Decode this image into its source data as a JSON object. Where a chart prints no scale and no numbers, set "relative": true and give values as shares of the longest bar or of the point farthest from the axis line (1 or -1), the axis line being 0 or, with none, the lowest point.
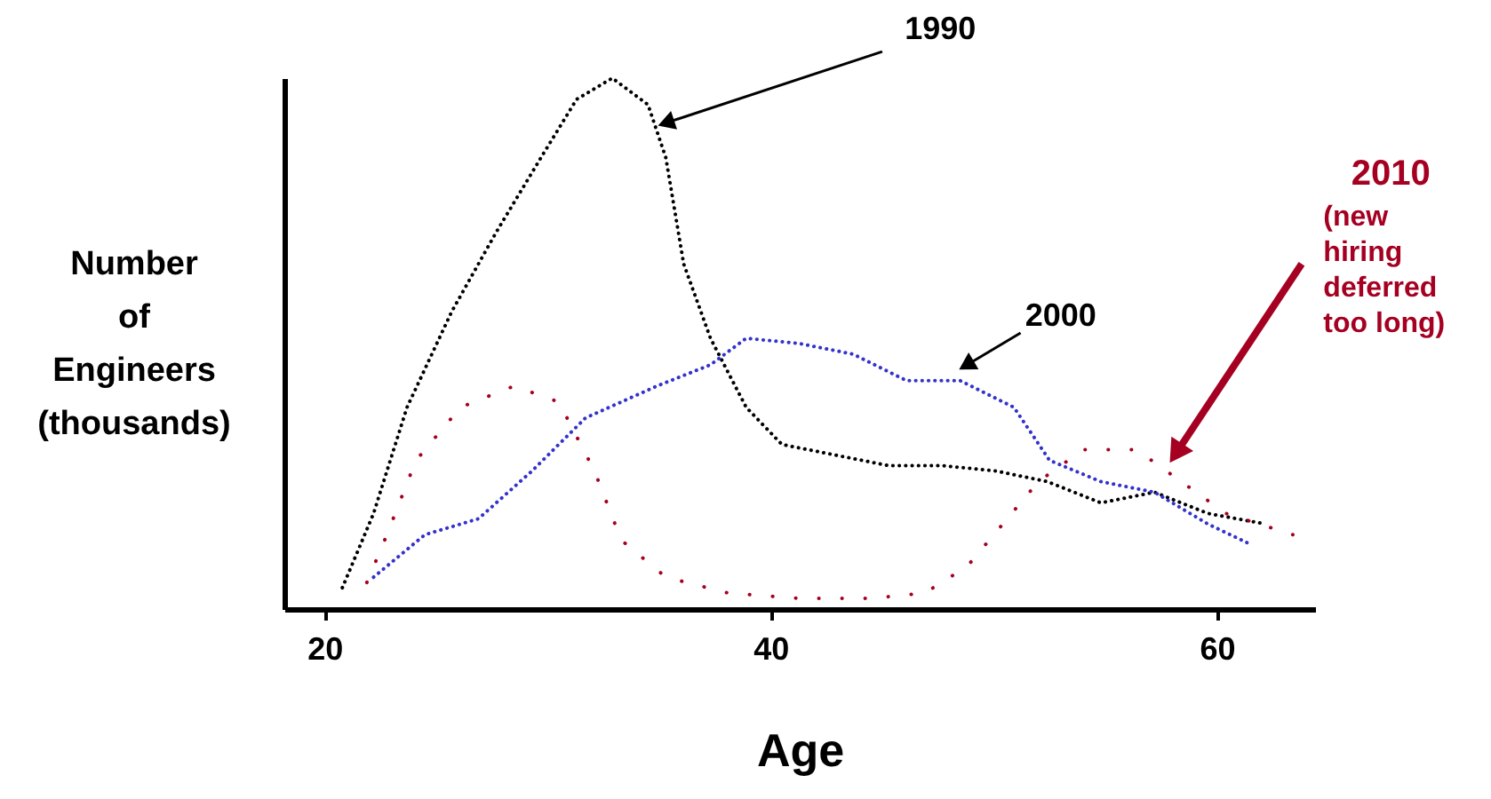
{
  "chart_data": {
    "type": "line",
    "relative": true,
    "xlabel": "Age",
    "ylabel": "Number\nof\nEngineers\n(thousands)",
    "xlim": [
      18.2,
      64.4
    ],
    "xticks": [
      20,
      40,
      60
    ],
    "tick_labels": "x",
    "grid": false,
    "legend": false,
    "line_style": "dotted",
    "annotations": [
      "(new hiring deferred too long)"
    ],
    "series": [
      {
        "name": "1990",
        "color": "#000000",
        "x": [
          20.8,
          22.2,
          23.7,
          25.7,
          27.7,
          29.7,
          31.3,
          32.9,
          34.5,
          35.3,
          36.1,
          37.3,
          38.9,
          40.5,
          42.9,
          45.3,
          47.7,
          50.1,
          52.4,
          54.8,
          57.2,
          59.6,
          62.2
        ],
        "values": [
          0.04,
          0.18,
          0.38,
          0.56,
          0.71,
          0.85,
          0.96,
          1.0,
          0.95,
          0.85,
          0.65,
          0.51,
          0.38,
          0.31,
          0.29,
          0.27,
          0.27,
          0.26,
          0.24,
          0.2,
          0.22,
          0.18,
          0.16
        ]
      },
      {
        "name": "2000",
        "color": "#3333cc",
        "x": [
          22.2,
          24.5,
          26.9,
          29.3,
          31.7,
          34.9,
          37.3,
          38.9,
          41.3,
          43.7,
          46.1,
          48.5,
          50.9,
          52.5,
          54.8,
          57.2,
          59.6,
          61.6
        ],
        "values": [
          0.06,
          0.14,
          0.17,
          0.26,
          0.36,
          0.42,
          0.46,
          0.51,
          0.5,
          0.48,
          0.43,
          0.43,
          0.38,
          0.28,
          0.24,
          0.22,
          0.16,
          0.12
        ]
      },
      {
        "name": "2010",
        "color": "#a50021",
        "x": [
          21.9,
          22.8,
          24.1,
          26.1,
          28.5,
          30.5,
          32.1,
          33.3,
          35.3,
          38.1,
          41.3,
          44.5,
          46.9,
          48.8,
          50.4,
          52.0,
          54.0,
          56.4,
          58.4,
          60.4,
          63.4
        ],
        "values": [
          0.05,
          0.14,
          0.28,
          0.38,
          0.42,
          0.39,
          0.26,
          0.13,
          0.06,
          0.03,
          0.02,
          0.02,
          0.03,
          0.08,
          0.16,
          0.24,
          0.3,
          0.3,
          0.24,
          0.18,
          0.14
        ]
      }
    ]
  }
}
